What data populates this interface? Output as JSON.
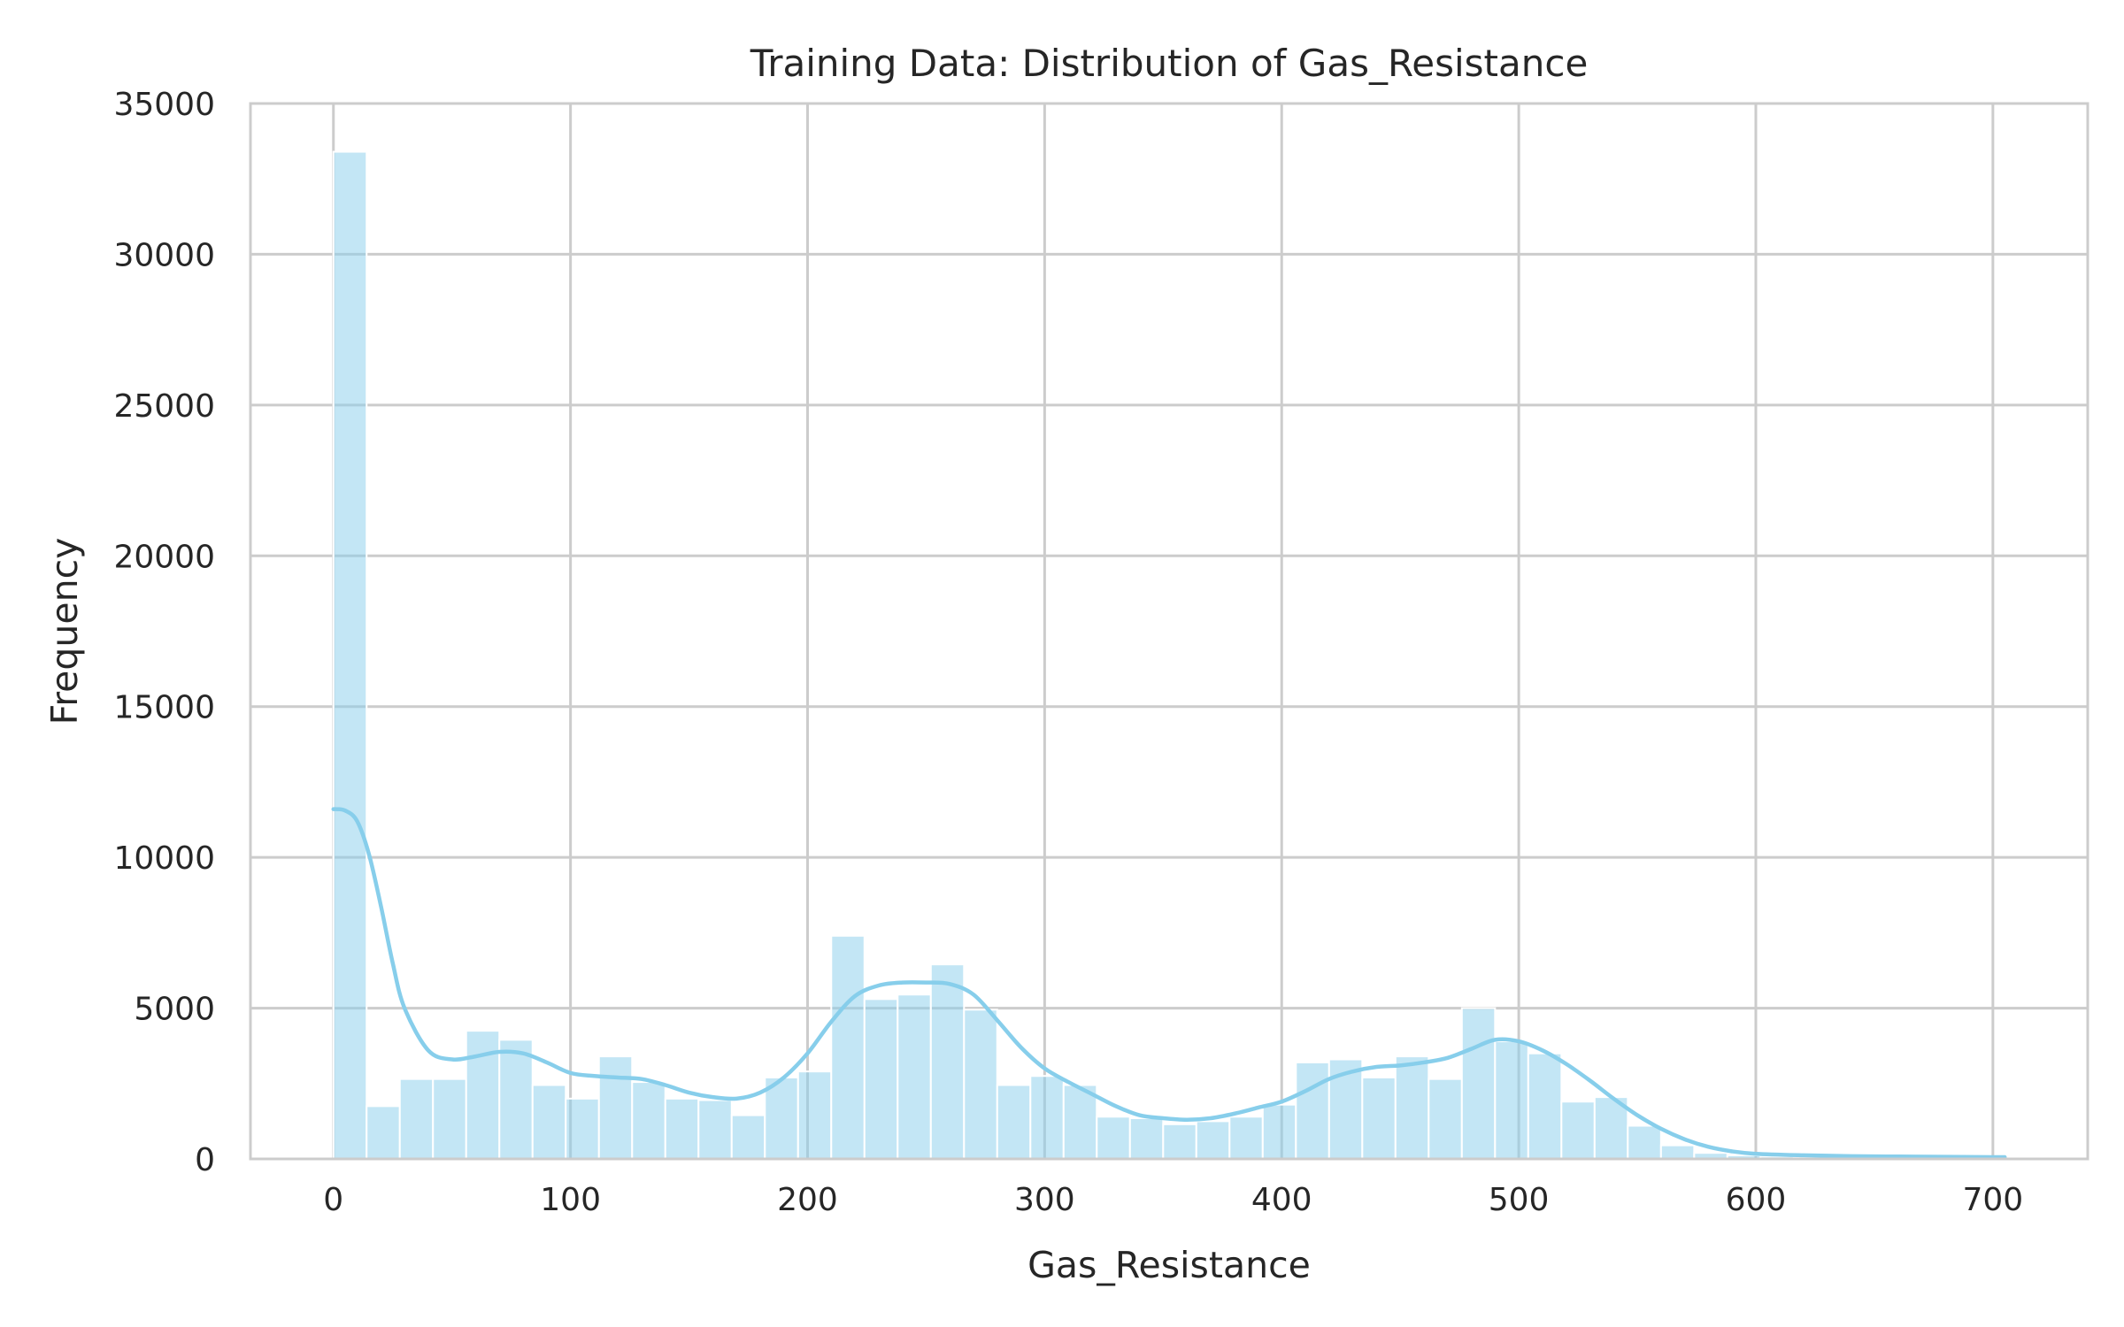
{
  "chart_data": {
    "type": "bar",
    "title": "Training Data: Distribution of Gas_Resistance",
    "xlabel": "Gas_Resistance",
    "ylabel": "Frequency",
    "xlim": [
      -35,
      740
    ],
    "ylim": [
      0,
      35000
    ],
    "xticks": [
      0,
      100,
      200,
      300,
      400,
      500,
      600,
      700
    ],
    "yticks": [
      0,
      5000,
      10000,
      15000,
      20000,
      25000,
      30000,
      35000
    ],
    "grid": true,
    "bin_width": 14,
    "bin_start": 0,
    "values": [
      33400,
      1750,
      2650,
      2650,
      4250,
      3950,
      2450,
      2000,
      3400,
      2550,
      2000,
      1950,
      1450,
      2700,
      2900,
      7400,
      5300,
      5450,
      6450,
      4950,
      2450,
      2750,
      2450,
      1400,
      1350,
      1150,
      1250,
      1400,
      1800,
      3200,
      3300,
      2700,
      3400,
      2650,
      5000,
      3900,
      3500,
      1900,
      2050,
      1100,
      450,
      200,
      120,
      80,
      60,
      50,
      40,
      30,
      25,
      20,
      15
    ],
    "kde": {
      "x": [
        0,
        5,
        10,
        15,
        20,
        25,
        30,
        40,
        50,
        60,
        70,
        80,
        90,
        100,
        110,
        120,
        130,
        140,
        150,
        160,
        170,
        180,
        190,
        200,
        210,
        220,
        230,
        240,
        250,
        260,
        270,
        280,
        290,
        300,
        310,
        320,
        330,
        340,
        350,
        360,
        370,
        380,
        390,
        400,
        410,
        420,
        430,
        440,
        450,
        460,
        470,
        480,
        490,
        500,
        510,
        520,
        530,
        540,
        550,
        560,
        570,
        580,
        590,
        600,
        620,
        640,
        660,
        680,
        700,
        705
      ],
      "y": [
        11600,
        11550,
        11200,
        10100,
        8400,
        6500,
        5000,
        3600,
        3300,
        3400,
        3550,
        3500,
        3200,
        2850,
        2750,
        2700,
        2650,
        2450,
        2200,
        2050,
        2000,
        2200,
        2700,
        3500,
        4550,
        5400,
        5750,
        5850,
        5850,
        5800,
        5450,
        4600,
        3700,
        3000,
        2550,
        2150,
        1750,
        1450,
        1350,
        1300,
        1350,
        1500,
        1700,
        1900,
        2250,
        2650,
        2900,
        3050,
        3100,
        3200,
        3350,
        3650,
        3950,
        3900,
        3600,
        3150,
        2600,
        2000,
        1450,
        1000,
        650,
        400,
        250,
        170,
        120,
        90,
        80,
        70,
        60,
        60
      ]
    }
  },
  "colors": {
    "bar_fill": "#87CEEB",
    "bar_opacity": 0.5,
    "kde_line": "#87CEEB",
    "grid": "#cccccc",
    "spine": "#cccccc",
    "text": "#262626"
  }
}
